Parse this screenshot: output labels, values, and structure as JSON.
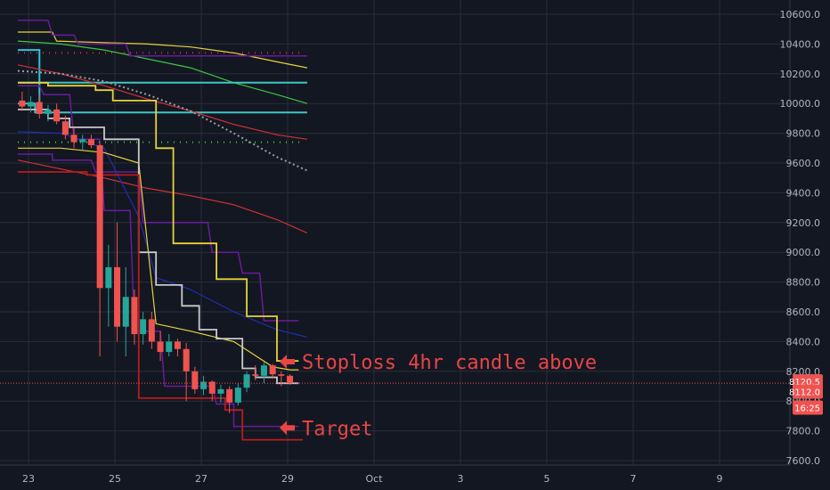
{
  "chart_data": {
    "type": "candlestick",
    "y_axis": {
      "ticks": [
        "10600.0",
        "10400.0",
        "10200.0",
        "10000.0",
        "9800.0",
        "9600.0",
        "9400.0",
        "9200.0",
        "9000.0",
        "8800.0",
        "8600.0",
        "8400.0",
        "8200.0",
        "8000.0",
        "7800.0",
        "7600.0"
      ],
      "range": [
        7550,
        10700
      ],
      "position": "right"
    },
    "x_axis": {
      "ticks": [
        "23",
        "25",
        "27",
        "29",
        "Oct",
        "3",
        "5",
        "7",
        "9"
      ],
      "tick_dates": [
        "Sep 23",
        "Sep 25",
        "Sep 27",
        "Sep 29",
        "Oct 1",
        "Oct 3",
        "Oct 5",
        "Oct 7",
        "Oct 9"
      ],
      "range_days": [
        "Sep 22.3",
        "Oct 10.8"
      ]
    },
    "grid": true,
    "price_tags": [
      {
        "label": "8120.5",
        "value": 8120.5,
        "color": "#ef5350"
      },
      {
        "label": "8112.0",
        "value": 8112.0,
        "color": "#ef5350"
      },
      {
        "label": "16:25",
        "color": "#ef5350"
      }
    ],
    "current_price_line": 8120.5,
    "annotations": [
      {
        "text": "Stoploss 4hr candle above",
        "value": 8265,
        "color": "#e84545"
      },
      {
        "text": "Target",
        "value": 7820,
        "color": "#e84545"
      }
    ],
    "candles_x_day_offsets": [
      0.1,
      0.3,
      0.5,
      0.7,
      0.9,
      1.1,
      1.3,
      1.5,
      1.7,
      1.9,
      2.1,
      2.3,
      2.5,
      2.7,
      2.9,
      3.1,
      3.3,
      3.5,
      3.7,
      3.9,
      4.1,
      4.3,
      4.5,
      4.7,
      4.9,
      5.1,
      5.3,
      5.5,
      5.7,
      5.9,
      6.1,
      6.3
    ],
    "candles": [
      {
        "o": 10020,
        "h": 10080,
        "l": 9950,
        "c": 9980
      },
      {
        "o": 9980,
        "h": 10050,
        "l": 9940,
        "c": 10010
      },
      {
        "o": 10010,
        "h": 10060,
        "l": 9900,
        "c": 9930
      },
      {
        "o": 9930,
        "h": 9990,
        "l": 9880,
        "c": 9960
      },
      {
        "o": 9960,
        "h": 10000,
        "l": 9860,
        "c": 9880
      },
      {
        "o": 9880,
        "h": 9920,
        "l": 9760,
        "c": 9790
      },
      {
        "o": 9790,
        "h": 9840,
        "l": 9700,
        "c": 9740
      },
      {
        "o": 9740,
        "h": 9790,
        "l": 9690,
        "c": 9760
      },
      {
        "o": 9760,
        "h": 9790,
        "l": 9700,
        "c": 9720
      },
      {
        "o": 9720,
        "h": 9730,
        "l": 8300,
        "c": 8760
      },
      {
        "o": 8760,
        "h": 9050,
        "l": 8500,
        "c": 8900
      },
      {
        "o": 8900,
        "h": 9200,
        "l": 8400,
        "c": 8500
      },
      {
        "o": 8500,
        "h": 8900,
        "l": 8300,
        "c": 8700
      },
      {
        "o": 8700,
        "h": 8750,
        "l": 8380,
        "c": 8450
      },
      {
        "o": 8450,
        "h": 8600,
        "l": 8380,
        "c": 8550
      },
      {
        "o": 8550,
        "h": 8600,
        "l": 8350,
        "c": 8400
      },
      {
        "o": 8400,
        "h": 8470,
        "l": 8270,
        "c": 8330
      },
      {
        "o": 8330,
        "h": 8450,
        "l": 8300,
        "c": 8400
      },
      {
        "o": 8400,
        "h": 8420,
        "l": 8300,
        "c": 8350
      },
      {
        "o": 8350,
        "h": 8390,
        "l": 8000,
        "c": 8200
      },
      {
        "o": 8200,
        "h": 8230,
        "l": 8050,
        "c": 8080
      },
      {
        "o": 8080,
        "h": 8170,
        "l": 8040,
        "c": 8130
      },
      {
        "o": 8130,
        "h": 8140,
        "l": 8000,
        "c": 8050
      },
      {
        "o": 8050,
        "h": 8110,
        "l": 7990,
        "c": 8080
      },
      {
        "o": 8080,
        "h": 8100,
        "l": 7920,
        "c": 7990
      },
      {
        "o": 7990,
        "h": 8120,
        "l": 7970,
        "c": 8090
      },
      {
        "o": 8090,
        "h": 8200,
        "l": 8060,
        "c": 8180
      },
      {
        "o": 8180,
        "h": 8240,
        "l": 8140,
        "c": 8170
      },
      {
        "o": 8170,
        "h": 8260,
        "l": 8120,
        "c": 8240
      },
      {
        "o": 8240,
        "h": 8250,
        "l": 8150,
        "c": 8180
      },
      {
        "o": 8180,
        "h": 8200,
        "l": 8100,
        "c": 8170
      },
      {
        "o": 8170,
        "h": 8180,
        "l": 8110,
        "c": 8120
      }
    ],
    "colors": {
      "up": "#26a69a",
      "down": "#ef5350",
      "background": "#131722",
      "grid": "#2a2e39"
    },
    "overlay_lines": [
      {
        "color": "#e6d33a",
        "width": 1.2,
        "points": [
          [
            0,
            10480
          ],
          [
            0.8,
            10480
          ],
          [
            0.9,
            10420
          ],
          [
            3,
            10400
          ],
          [
            4,
            10380
          ],
          [
            5,
            10340
          ],
          [
            6,
            10280
          ],
          [
            6.7,
            10240
          ]
        ]
      },
      {
        "color": "#3fc53f",
        "width": 1.2,
        "points": [
          [
            0,
            10420
          ],
          [
            1,
            10400
          ],
          [
            2,
            10360
          ],
          [
            3,
            10300
          ],
          [
            4,
            10240
          ],
          [
            5,
            10140
          ],
          [
            6,
            10060
          ],
          [
            6.7,
            10000
          ]
        ]
      },
      {
        "color": "#3fc5c5",
        "width": 2,
        "points": [
          [
            0,
            10140
          ],
          [
            6.7,
            10140
          ]
        ]
      },
      {
        "color": "#3fc5c5",
        "width": 2,
        "points": [
          [
            0,
            10000
          ],
          [
            0.4,
            10000
          ],
          [
            0.4,
            9940
          ],
          [
            6.7,
            9940
          ]
        ]
      },
      {
        "color": "#2ec4d6",
        "width": 2,
        "points": [
          [
            0,
            10360
          ],
          [
            0.5,
            10360
          ],
          [
            0.5,
            10000
          ]
        ]
      },
      {
        "color": "#d23232",
        "width": 1.2,
        "points": [
          [
            0,
            10260
          ],
          [
            1,
            10200
          ],
          [
            2,
            10120
          ],
          [
            3,
            10030
          ],
          [
            4,
            9950
          ],
          [
            5,
            9860
          ],
          [
            6,
            9790
          ],
          [
            6.7,
            9760
          ]
        ]
      },
      {
        "color": "#d23232",
        "width": 1.2,
        "points": [
          [
            0,
            9620
          ],
          [
            1,
            9560
          ],
          [
            2,
            9500
          ],
          [
            3,
            9430
          ],
          [
            4,
            9380
          ],
          [
            5,
            9320
          ],
          [
            6,
            9220
          ],
          [
            6.7,
            9130
          ]
        ]
      },
      {
        "color": "#9a9ea8",
        "width": 2,
        "dash": "2,3",
        "points": [
          [
            0,
            10220
          ],
          [
            1,
            10200
          ],
          [
            2,
            10150
          ],
          [
            3,
            10060
          ],
          [
            4,
            9950
          ],
          [
            5,
            9800
          ],
          [
            6,
            9640
          ],
          [
            6.7,
            9550
          ]
        ]
      },
      {
        "color": "#6a1b9a",
        "width": 1.5,
        "points": [
          [
            0,
            10560
          ],
          [
            0.7,
            10560
          ],
          [
            0.8,
            10460
          ],
          [
            1.3,
            10460
          ],
          [
            1.4,
            10400
          ],
          [
            2.5,
            10400
          ],
          [
            2.6,
            10320
          ],
          [
            6.7,
            10320
          ]
        ]
      },
      {
        "color": "#6a1b9a",
        "width": 1.5,
        "points": [
          [
            0,
            9660
          ],
          [
            0.8,
            9660
          ],
          [
            0.8,
            9620
          ],
          [
            1.7,
            9620
          ],
          [
            1.8,
            9540
          ],
          [
            2.8,
            9540
          ],
          [
            2.9,
            9200
          ],
          [
            4.4,
            9200
          ],
          [
            4.5,
            9000
          ],
          [
            5.1,
            9000
          ],
          [
            5.2,
            8860
          ],
          [
            5.6,
            8860
          ],
          [
            5.7,
            8540
          ],
          [
            6.5,
            8540
          ]
        ]
      },
      {
        "color": "#6a1b9a",
        "width": 1.5,
        "points": [
          [
            0,
            10120
          ],
          [
            0.5,
            10120
          ],
          [
            0.6,
            10060
          ],
          [
            1.2,
            10060
          ],
          [
            1.3,
            9760
          ],
          [
            1.9,
            9760
          ],
          [
            2.0,
            9280
          ],
          [
            2.6,
            9280
          ],
          [
            2.7,
            8470
          ],
          [
            3.3,
            8470
          ],
          [
            3.4,
            8100
          ],
          [
            4.5,
            8100
          ],
          [
            4.6,
            7980
          ],
          [
            5.0,
            7980
          ],
          [
            5.0,
            7830
          ],
          [
            6.5,
            7830
          ]
        ]
      },
      {
        "color": "#1f2fb0",
        "width": 1.2,
        "points": [
          [
            0,
            9810
          ],
          [
            1,
            9800
          ],
          [
            2,
            9700
          ],
          [
            2.8,
            9240
          ],
          [
            3.2,
            8830
          ],
          [
            4,
            8750
          ],
          [
            5,
            8600
          ],
          [
            6,
            8480
          ],
          [
            6.7,
            8430
          ]
        ]
      },
      {
        "color": "#e6d33a",
        "width": 1.8,
        "points": [
          [
            0,
            10140
          ],
          [
            0.7,
            10140
          ],
          [
            0.7,
            10120
          ],
          [
            1.8,
            10120
          ],
          [
            1.8,
            10090
          ],
          [
            2.2,
            10090
          ],
          [
            2.2,
            10020
          ],
          [
            3.2,
            10020
          ],
          [
            3.2,
            9700
          ],
          [
            3.6,
            9700
          ],
          [
            3.6,
            9060
          ],
          [
            4.6,
            9060
          ],
          [
            4.6,
            8820
          ],
          [
            5.3,
            8820
          ],
          [
            5.3,
            8570
          ],
          [
            6.0,
            8570
          ],
          [
            6.0,
            8270
          ],
          [
            6.5,
            8270
          ]
        ]
      },
      {
        "color": "#e6d33a",
        "width": 1.2,
        "points": [
          [
            0,
            9700
          ],
          [
            1,
            9700
          ],
          [
            2,
            9670
          ],
          [
            2.8,
            9600
          ],
          [
            3.2,
            8520
          ],
          [
            4,
            8470
          ],
          [
            5,
            8400
          ],
          [
            5.9,
            8230
          ],
          [
            6.3,
            8210
          ],
          [
            6.5,
            8210
          ]
        ]
      },
      {
        "color": "#c9c9c9",
        "width": 1.8,
        "points": [
          [
            0,
            9960
          ],
          [
            0.7,
            9960
          ],
          [
            0.7,
            9900
          ],
          [
            1.2,
            9900
          ],
          [
            1.2,
            9840
          ],
          [
            2.0,
            9840
          ],
          [
            2.0,
            9760
          ],
          [
            2.8,
            9760
          ],
          [
            2.8,
            9000
          ],
          [
            3.2,
            9000
          ],
          [
            3.2,
            8780
          ],
          [
            3.8,
            8780
          ],
          [
            3.8,
            8640
          ],
          [
            4.2,
            8640
          ],
          [
            4.2,
            8480
          ],
          [
            4.6,
            8480
          ],
          [
            4.6,
            8420
          ],
          [
            5.2,
            8420
          ],
          [
            5.2,
            8220
          ],
          [
            5.5,
            8220
          ],
          [
            5.5,
            8160
          ],
          [
            6.0,
            8160
          ],
          [
            6.0,
            8120
          ],
          [
            6.5,
            8120
          ]
        ]
      },
      {
        "color": "#b71c1c",
        "width": 1.8,
        "points": [
          [
            0,
            9540
          ],
          [
            1.6,
            9540
          ],
          [
            1.6,
            9520
          ],
          [
            2.8,
            9520
          ],
          [
            2.8,
            8020
          ],
          [
            4.8,
            8020
          ],
          [
            4.8,
            7940
          ],
          [
            5.2,
            7940
          ],
          [
            5.2,
            7740
          ],
          [
            6.6,
            7740
          ]
        ]
      }
    ],
    "dotted_lines": [
      {
        "color": "#d23232",
        "value": 10340,
        "from": 0,
        "to": 6.6
      },
      {
        "color": "#3fc53f",
        "value": 9740,
        "from": 0,
        "to": 6.6
      }
    ]
  }
}
